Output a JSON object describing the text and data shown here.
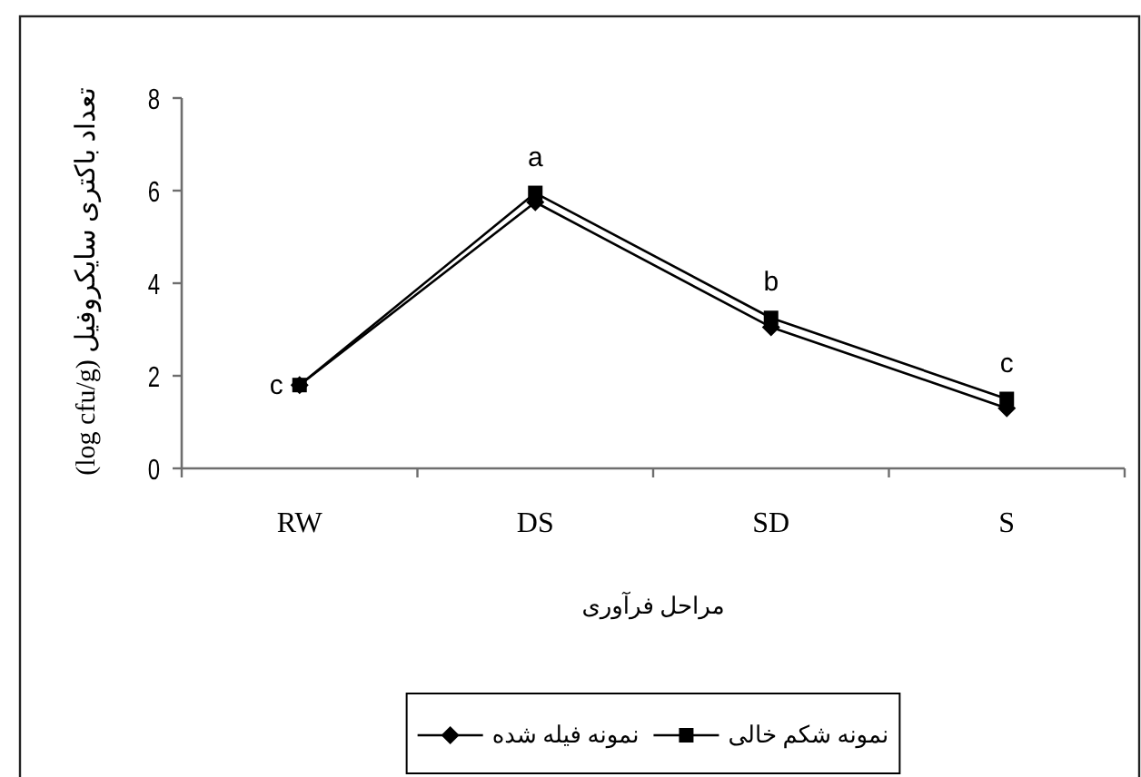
{
  "chart_data": {
    "type": "line",
    "xlabel": "مراحل فرآوری",
    "ylabel": "تعداد باکتری سایکروفیل (log cfu/g)",
    "categories": [
      "RW",
      "DS",
      "SD",
      "S"
    ],
    "series": [
      {
        "name": "نمونه فیله شده",
        "color": "#000000",
        "marker": "diamond",
        "values": [
          1.8,
          5.75,
          3.05,
          1.3
        ]
      },
      {
        "name": "نمونه شکم خالی",
        "color": "#000000",
        "marker": "square",
        "values": [
          1.8,
          5.95,
          3.25,
          1.5
        ]
      }
    ],
    "ylim": [
      0,
      8
    ],
    "yticks": [
      0,
      2,
      4,
      6,
      8
    ],
    "legend": "bottom",
    "annotations": [
      {
        "text": "c",
        "x": "RW",
        "y": 1.8
      },
      {
        "text": "a",
        "x": "DS",
        "y": 5.95
      },
      {
        "text": "b",
        "x": "SD",
        "y": 3.25
      },
      {
        "text": "c",
        "x": "S",
        "y": 1.5
      }
    ]
  }
}
